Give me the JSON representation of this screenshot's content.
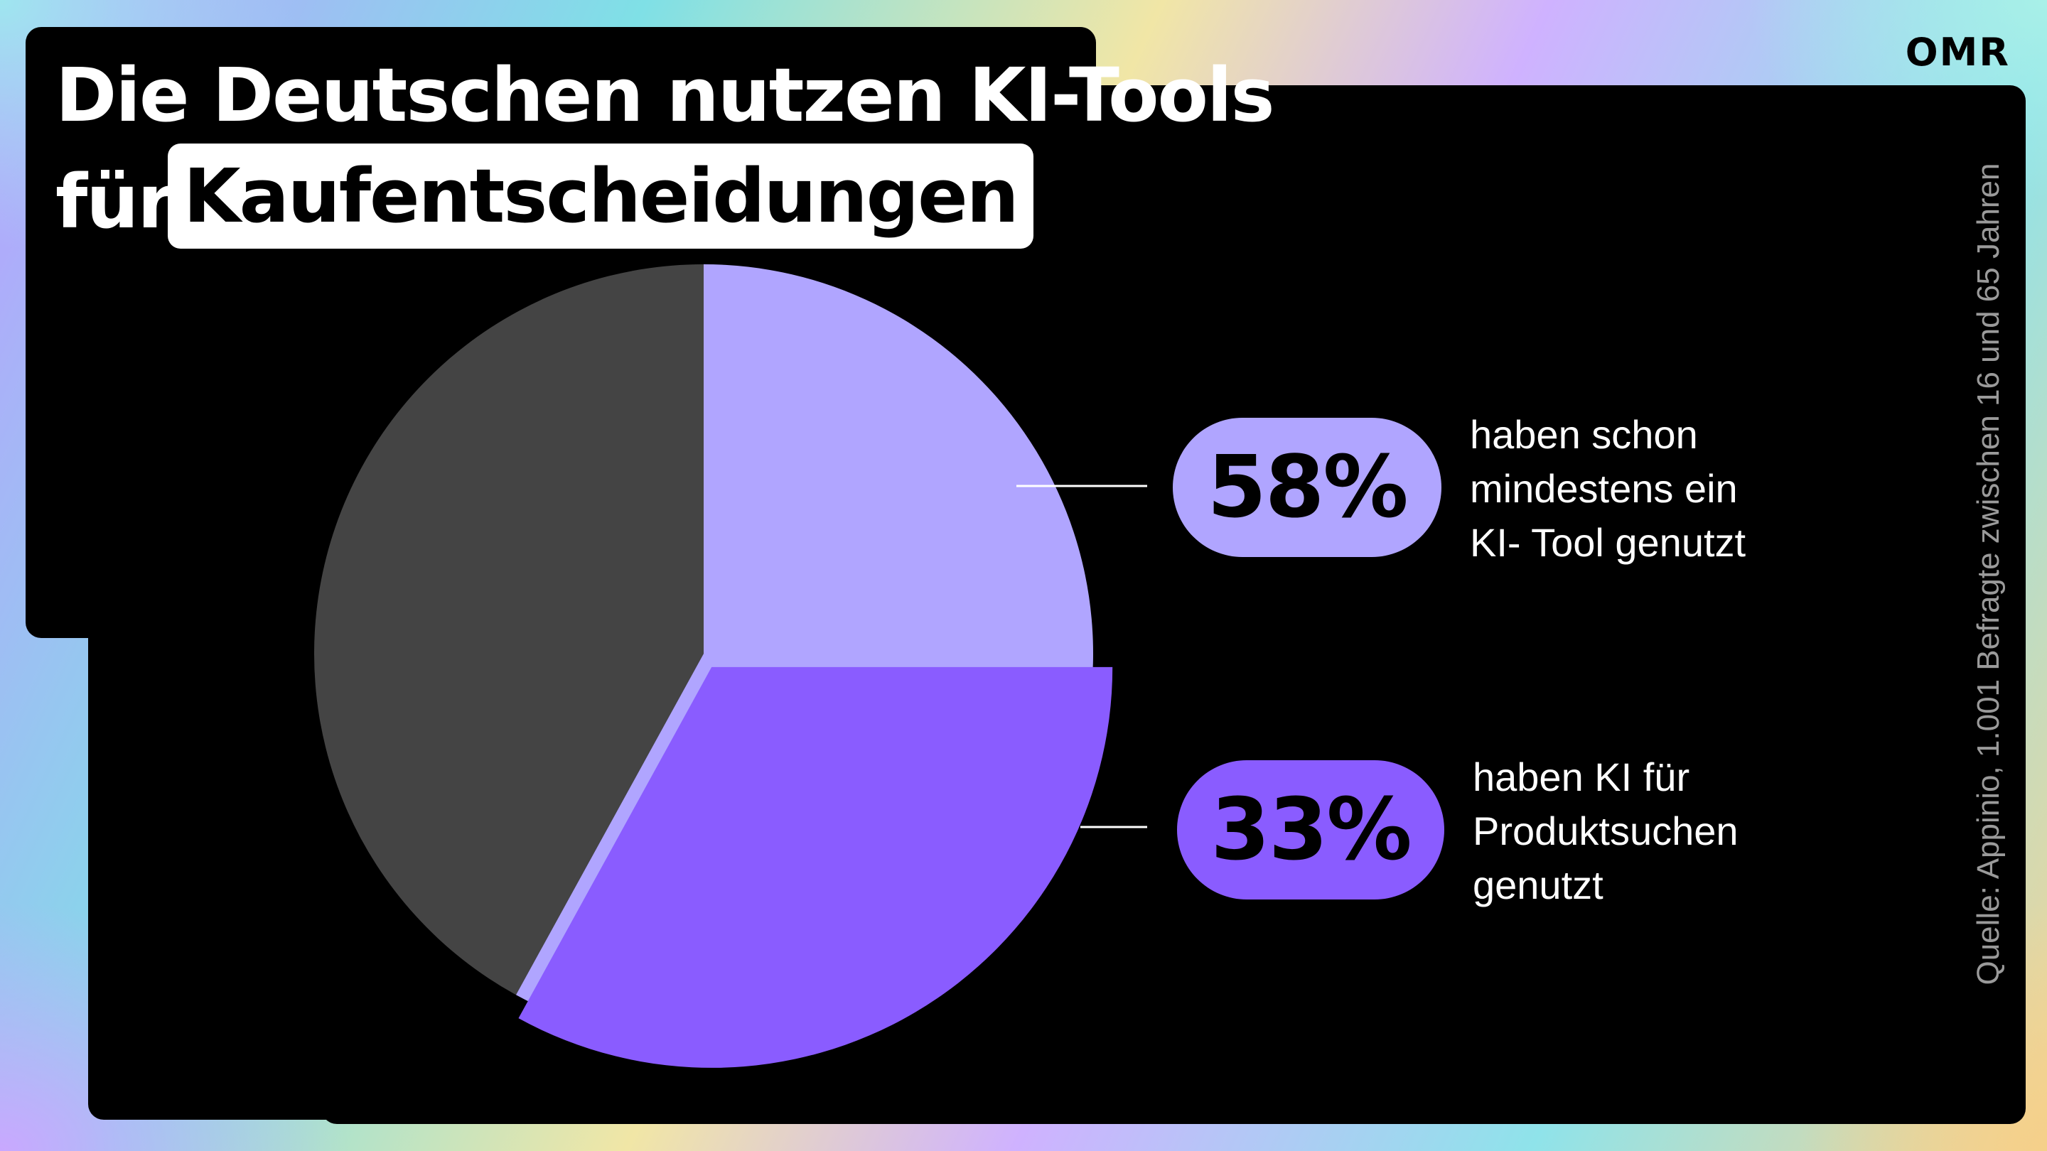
{
  "title": {
    "line1": "Die Deutschen nutzen KI-Tools",
    "line2_prefix": "für",
    "line2_highlight": "Kaufentscheidungen"
  },
  "logo": "OMR",
  "source": "Quelle: Appinio, 1.001 Befragte zwischen 16 und 65 Jahren",
  "colors": {
    "slice_58": "#b0a5ff",
    "slice_33": "#8a5cff",
    "slice_rest": "#444444",
    "panel": "#000000"
  },
  "chart_data": {
    "type": "pie",
    "slices": [
      {
        "label": "58%",
        "value": 58,
        "color": "#b0a5ff",
        "description": [
          "haben schon",
          "mindestens ein",
          "KI- Tool genutzt"
        ]
      },
      {
        "label": "33%",
        "value": 33,
        "color": "#8a5cff",
        "description": [
          "haben KI für",
          "Produktsuchen",
          "genutzt"
        ],
        "subset_of": "58%"
      }
    ],
    "remainder": {
      "value": 42,
      "color": "#444444"
    }
  }
}
